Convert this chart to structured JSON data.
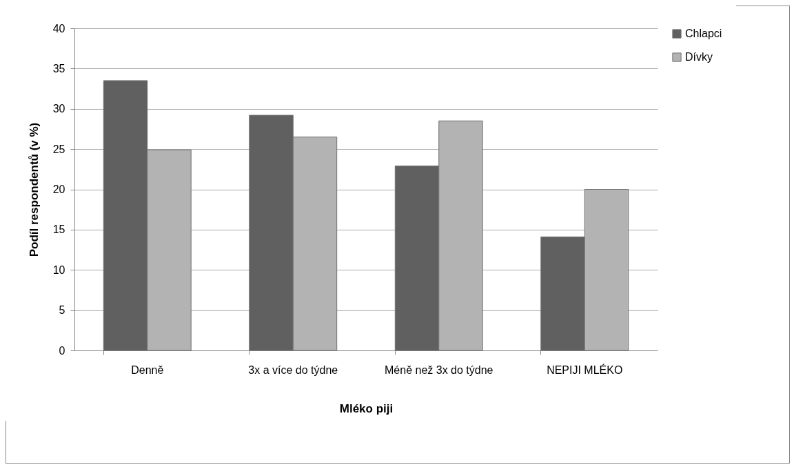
{
  "chart_data": {
    "type": "bar",
    "xlabel": "Mléko piji",
    "ylabel": "Podíl respondentů (v %)",
    "categories": [
      "Denně",
      "3x a více do týdne",
      "Méně než 3x do týdne",
      "NEPIJI MLÉKO"
    ],
    "series": [
      {
        "name": "Chlapci",
        "color": "#606060",
        "values": [
          33.5,
          29.2,
          22.9,
          14.1
        ]
      },
      {
        "name": "Dívky",
        "color": "#b3b3b3",
        "values": [
          24.9,
          26.5,
          28.5,
          20.0
        ]
      }
    ],
    "ylim": [
      0,
      40
    ],
    "yticks": [
      0,
      5,
      10,
      15,
      20,
      25,
      30,
      35,
      40
    ],
    "grid": "y",
    "legend": "right"
  }
}
